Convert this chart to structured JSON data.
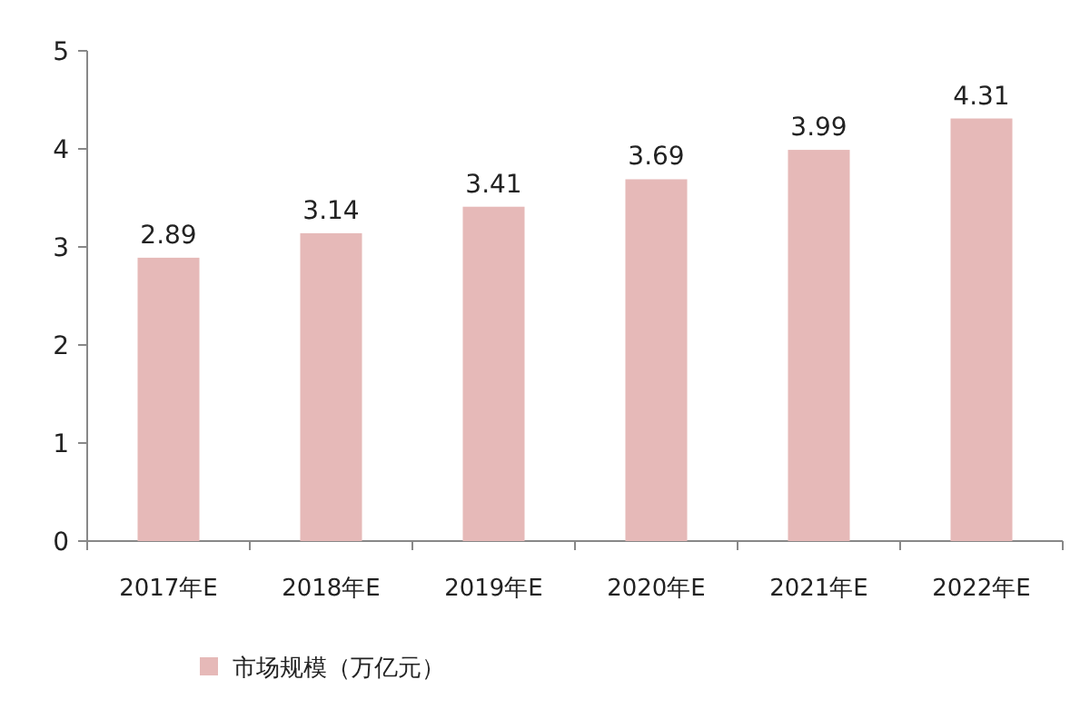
{
  "chart_data": {
    "type": "bar",
    "categories": [
      "2017年E",
      "2018年E",
      "2019年E",
      "2020年E",
      "2021年E",
      "2022年E"
    ],
    "series": [
      {
        "name": "市场规模（万亿元）",
        "color": "#e6b9b8",
        "values": [
          2.89,
          3.14,
          3.41,
          3.69,
          3.99,
          4.31
        ]
      }
    ],
    "ylim": [
      0,
      5
    ],
    "yticks": [
      0,
      1,
      2,
      3,
      4,
      5
    ],
    "data_labels": true,
    "legend": "bottom left"
  }
}
